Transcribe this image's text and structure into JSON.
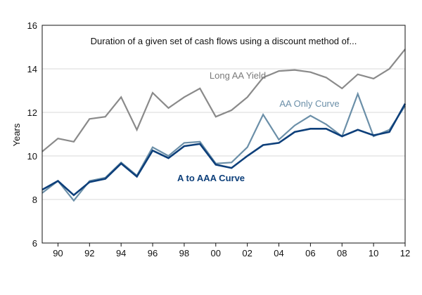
{
  "chart_data": {
    "type": "line",
    "title": "Duration of a given set of cash flows using a discount method of...",
    "xlabel": "",
    "ylabel": "Years",
    "xlim": [
      1989,
      2012
    ],
    "ylim": [
      6,
      16
    ],
    "yticks": [
      6,
      8,
      10,
      12,
      14,
      16
    ],
    "xticks": [
      {
        "value": 1990,
        "label": "90"
      },
      {
        "value": 1992,
        "label": "92"
      },
      {
        "value": 1994,
        "label": "94"
      },
      {
        "value": 1996,
        "label": "96"
      },
      {
        "value": 1998,
        "label": "98"
      },
      {
        "value": 2000,
        "label": "00"
      },
      {
        "value": 2002,
        "label": "02"
      },
      {
        "value": 2004,
        "label": "04"
      },
      {
        "value": 2006,
        "label": "06"
      },
      {
        "value": 2008,
        "label": "08"
      },
      {
        "value": 2010,
        "label": "10"
      },
      {
        "value": 2012,
        "label": "12"
      }
    ],
    "grid": true,
    "x": [
      1989,
      1990,
      1991,
      1992,
      1993,
      1994,
      1995,
      1996,
      1997,
      1998,
      1999,
      2000,
      2001,
      2002,
      2003,
      2004,
      2005,
      2006,
      2007,
      2008,
      2009,
      2010,
      2011,
      2012
    ],
    "series": [
      {
        "name": "Long AA Yield",
        "color": "#8a8a8a",
        "values": [
          10.2,
          10.8,
          10.65,
          11.7,
          11.8,
          12.7,
          11.2,
          12.9,
          12.2,
          12.7,
          13.1,
          11.8,
          12.1,
          12.7,
          13.6,
          13.9,
          13.95,
          13.85,
          13.6,
          13.1,
          13.75,
          13.55,
          14.0,
          14.9
        ]
      },
      {
        "name": "AA Only Curve",
        "color": "#6b8fa8",
        "values": [
          8.3,
          8.85,
          7.95,
          8.85,
          9.0,
          9.7,
          9.1,
          10.4,
          10.0,
          10.6,
          10.65,
          9.65,
          9.7,
          10.4,
          11.9,
          10.75,
          11.4,
          11.85,
          11.45,
          10.9,
          12.85,
          10.9,
          11.2,
          12.3
        ]
      },
      {
        "name": "A to AAA Curve",
        "color": "#0d3f7a",
        "values": [
          8.45,
          8.85,
          8.2,
          8.8,
          8.95,
          9.65,
          9.05,
          10.25,
          9.9,
          10.45,
          10.55,
          9.6,
          9.45,
          10.0,
          10.5,
          10.6,
          11.1,
          11.25,
          11.25,
          10.9,
          11.2,
          10.95,
          11.1,
          12.4
        ]
      }
    ],
    "annotations": [
      {
        "series": 0,
        "text": "Long AA Yield"
      },
      {
        "series": 1,
        "text": "AA Only Curve"
      },
      {
        "series": 2,
        "text": "A to AAA Curve"
      }
    ]
  }
}
